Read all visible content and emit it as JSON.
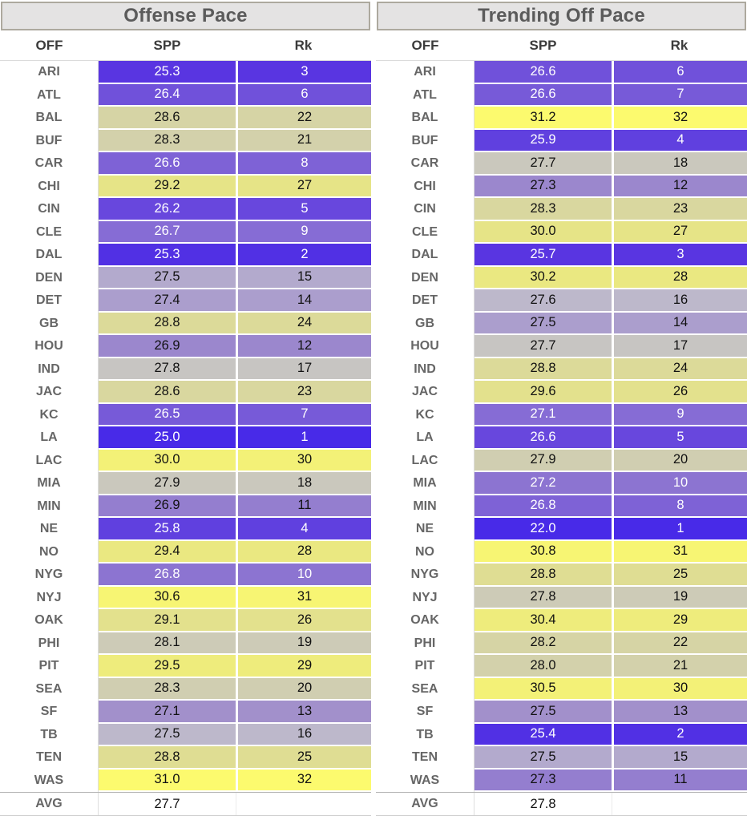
{
  "chart_data": [
    {
      "type": "table",
      "title": "Offense Pace",
      "columns": [
        "OFF",
        "SPP",
        "Rk"
      ],
      "rows": [
        {
          "team": "ARI",
          "spp": "25.3",
          "rk": 3
        },
        {
          "team": "ATL",
          "spp": "26.4",
          "rk": 6
        },
        {
          "team": "BAL",
          "spp": "28.6",
          "rk": 22
        },
        {
          "team": "BUF",
          "spp": "28.3",
          "rk": 21
        },
        {
          "team": "CAR",
          "spp": "26.6",
          "rk": 8
        },
        {
          "team": "CHI",
          "spp": "29.2",
          "rk": 27
        },
        {
          "team": "CIN",
          "spp": "26.2",
          "rk": 5
        },
        {
          "team": "CLE",
          "spp": "26.7",
          "rk": 9
        },
        {
          "team": "DAL",
          "spp": "25.3",
          "rk": 2
        },
        {
          "team": "DEN",
          "spp": "27.5",
          "rk": 15
        },
        {
          "team": "DET",
          "spp": "27.4",
          "rk": 14
        },
        {
          "team": "GB",
          "spp": "28.8",
          "rk": 24
        },
        {
          "team": "HOU",
          "spp": "26.9",
          "rk": 12
        },
        {
          "team": "IND",
          "spp": "27.8",
          "rk": 17
        },
        {
          "team": "JAC",
          "spp": "28.6",
          "rk": 23
        },
        {
          "team": "KC",
          "spp": "26.5",
          "rk": 7
        },
        {
          "team": "LA",
          "spp": "25.0",
          "rk": 1
        },
        {
          "team": "LAC",
          "spp": "30.0",
          "rk": 30
        },
        {
          "team": "MIA",
          "spp": "27.9",
          "rk": 18
        },
        {
          "team": "MIN",
          "spp": "26.9",
          "rk": 11
        },
        {
          "team": "NE",
          "spp": "25.8",
          "rk": 4
        },
        {
          "team": "NO",
          "spp": "29.4",
          "rk": 28
        },
        {
          "team": "NYG",
          "spp": "26.8",
          "rk": 10
        },
        {
          "team": "NYJ",
          "spp": "30.6",
          "rk": 31
        },
        {
          "team": "OAK",
          "spp": "29.1",
          "rk": 26
        },
        {
          "team": "PHI",
          "spp": "28.1",
          "rk": 19
        },
        {
          "team": "PIT",
          "spp": "29.5",
          "rk": 29
        },
        {
          "team": "SEA",
          "spp": "28.3",
          "rk": 20
        },
        {
          "team": "SF",
          "spp": "27.1",
          "rk": 13
        },
        {
          "team": "TB",
          "spp": "27.5",
          "rk": 16
        },
        {
          "team": "TEN",
          "spp": "28.8",
          "rk": 25
        },
        {
          "team": "WAS",
          "spp": "31.0",
          "rk": 32
        }
      ],
      "avg": {
        "label": "AVG",
        "spp": "27.7"
      }
    },
    {
      "type": "table",
      "title": "Trending Off Pace",
      "columns": [
        "OFF",
        "SPP",
        "Rk"
      ],
      "rows": [
        {
          "team": "ARI",
          "spp": "26.6",
          "rk": 6
        },
        {
          "team": "ATL",
          "spp": "26.6",
          "rk": 7
        },
        {
          "team": "BAL",
          "spp": "31.2",
          "rk": 32
        },
        {
          "team": "BUF",
          "spp": "25.9",
          "rk": 4
        },
        {
          "team": "CAR",
          "spp": "27.7",
          "rk": 18
        },
        {
          "team": "CHI",
          "spp": "27.3",
          "rk": 12
        },
        {
          "team": "CIN",
          "spp": "28.3",
          "rk": 23
        },
        {
          "team": "CLE",
          "spp": "30.0",
          "rk": 27
        },
        {
          "team": "DAL",
          "spp": "25.7",
          "rk": 3
        },
        {
          "team": "DEN",
          "spp": "30.2",
          "rk": 28
        },
        {
          "team": "DET",
          "spp": "27.6",
          "rk": 16
        },
        {
          "team": "GB",
          "spp": "27.5",
          "rk": 14
        },
        {
          "team": "HOU",
          "spp": "27.7",
          "rk": 17
        },
        {
          "team": "IND",
          "spp": "28.8",
          "rk": 24
        },
        {
          "team": "JAC",
          "spp": "29.6",
          "rk": 26
        },
        {
          "team": "KC",
          "spp": "27.1",
          "rk": 9
        },
        {
          "team": "LA",
          "spp": "26.6",
          "rk": 5
        },
        {
          "team": "LAC",
          "spp": "27.9",
          "rk": 20
        },
        {
          "team": "MIA",
          "spp": "27.2",
          "rk": 10
        },
        {
          "team": "MIN",
          "spp": "26.8",
          "rk": 8
        },
        {
          "team": "NE",
          "spp": "22.0",
          "rk": 1
        },
        {
          "team": "NO",
          "spp": "30.8",
          "rk": 31
        },
        {
          "team": "NYG",
          "spp": "28.8",
          "rk": 25
        },
        {
          "team": "NYJ",
          "spp": "27.8",
          "rk": 19
        },
        {
          "team": "OAK",
          "spp": "30.4",
          "rk": 29
        },
        {
          "team": "PHI",
          "spp": "28.2",
          "rk": 22
        },
        {
          "team": "PIT",
          "spp": "28.0",
          "rk": 21
        },
        {
          "team": "SEA",
          "spp": "30.5",
          "rk": 30
        },
        {
          "team": "SF",
          "spp": "27.5",
          "rk": 13
        },
        {
          "team": "TB",
          "spp": "25.4",
          "rk": 2
        },
        {
          "team": "TEN",
          "spp": "27.5",
          "rk": 15
        },
        {
          "team": "WAS",
          "spp": "27.3",
          "rk": 11
        }
      ],
      "avg": {
        "label": "AVG",
        "spp": "27.8"
      }
    }
  ],
  "style": {
    "white_text_max_rank": 10,
    "rank_ramp": [
      "#482AE8",
      "#5130E4",
      "#5935E1",
      "#6040DF",
      "#6847DD",
      "#7051DA",
      "#775AD8",
      "#7E62D6",
      "#866CD5",
      "#8C74D1",
      "#947ECF",
      "#9B87CD",
      "#A290CB",
      "#AB9ECD",
      "#B3AACD",
      "#BDB8CB",
      "#C7C5C2",
      "#CAC8BD",
      "#CDCBB7",
      "#D0CEB1",
      "#D3D1AB",
      "#D6D4A5",
      "#D9D79F",
      "#DCDA99",
      "#DFDD93",
      "#E3E18D",
      "#E6E487",
      "#EAE881",
      "#EEEC7C",
      "#F3F177",
      "#F7F573",
      "#FCFA6E"
    ],
    "ui_colors": {
      "page-bg": "#FFFFFF",
      "title-bg": "#E4E3E3",
      "title-border": "#ADA99E",
      "title-text": "#5B5B5B",
      "header-text": "#3B3B3B",
      "header-border": "#DBDBDB",
      "team-text": "#666666",
      "value-dark": "#111111",
      "value-light": "#FFFFFF",
      "grid-white": "#FFFFFF",
      "col-divider": "#DEDEDE",
      "avg-top-border": "#B5B5B5",
      "avg-bottom-border": "#CDCDCD"
    }
  }
}
